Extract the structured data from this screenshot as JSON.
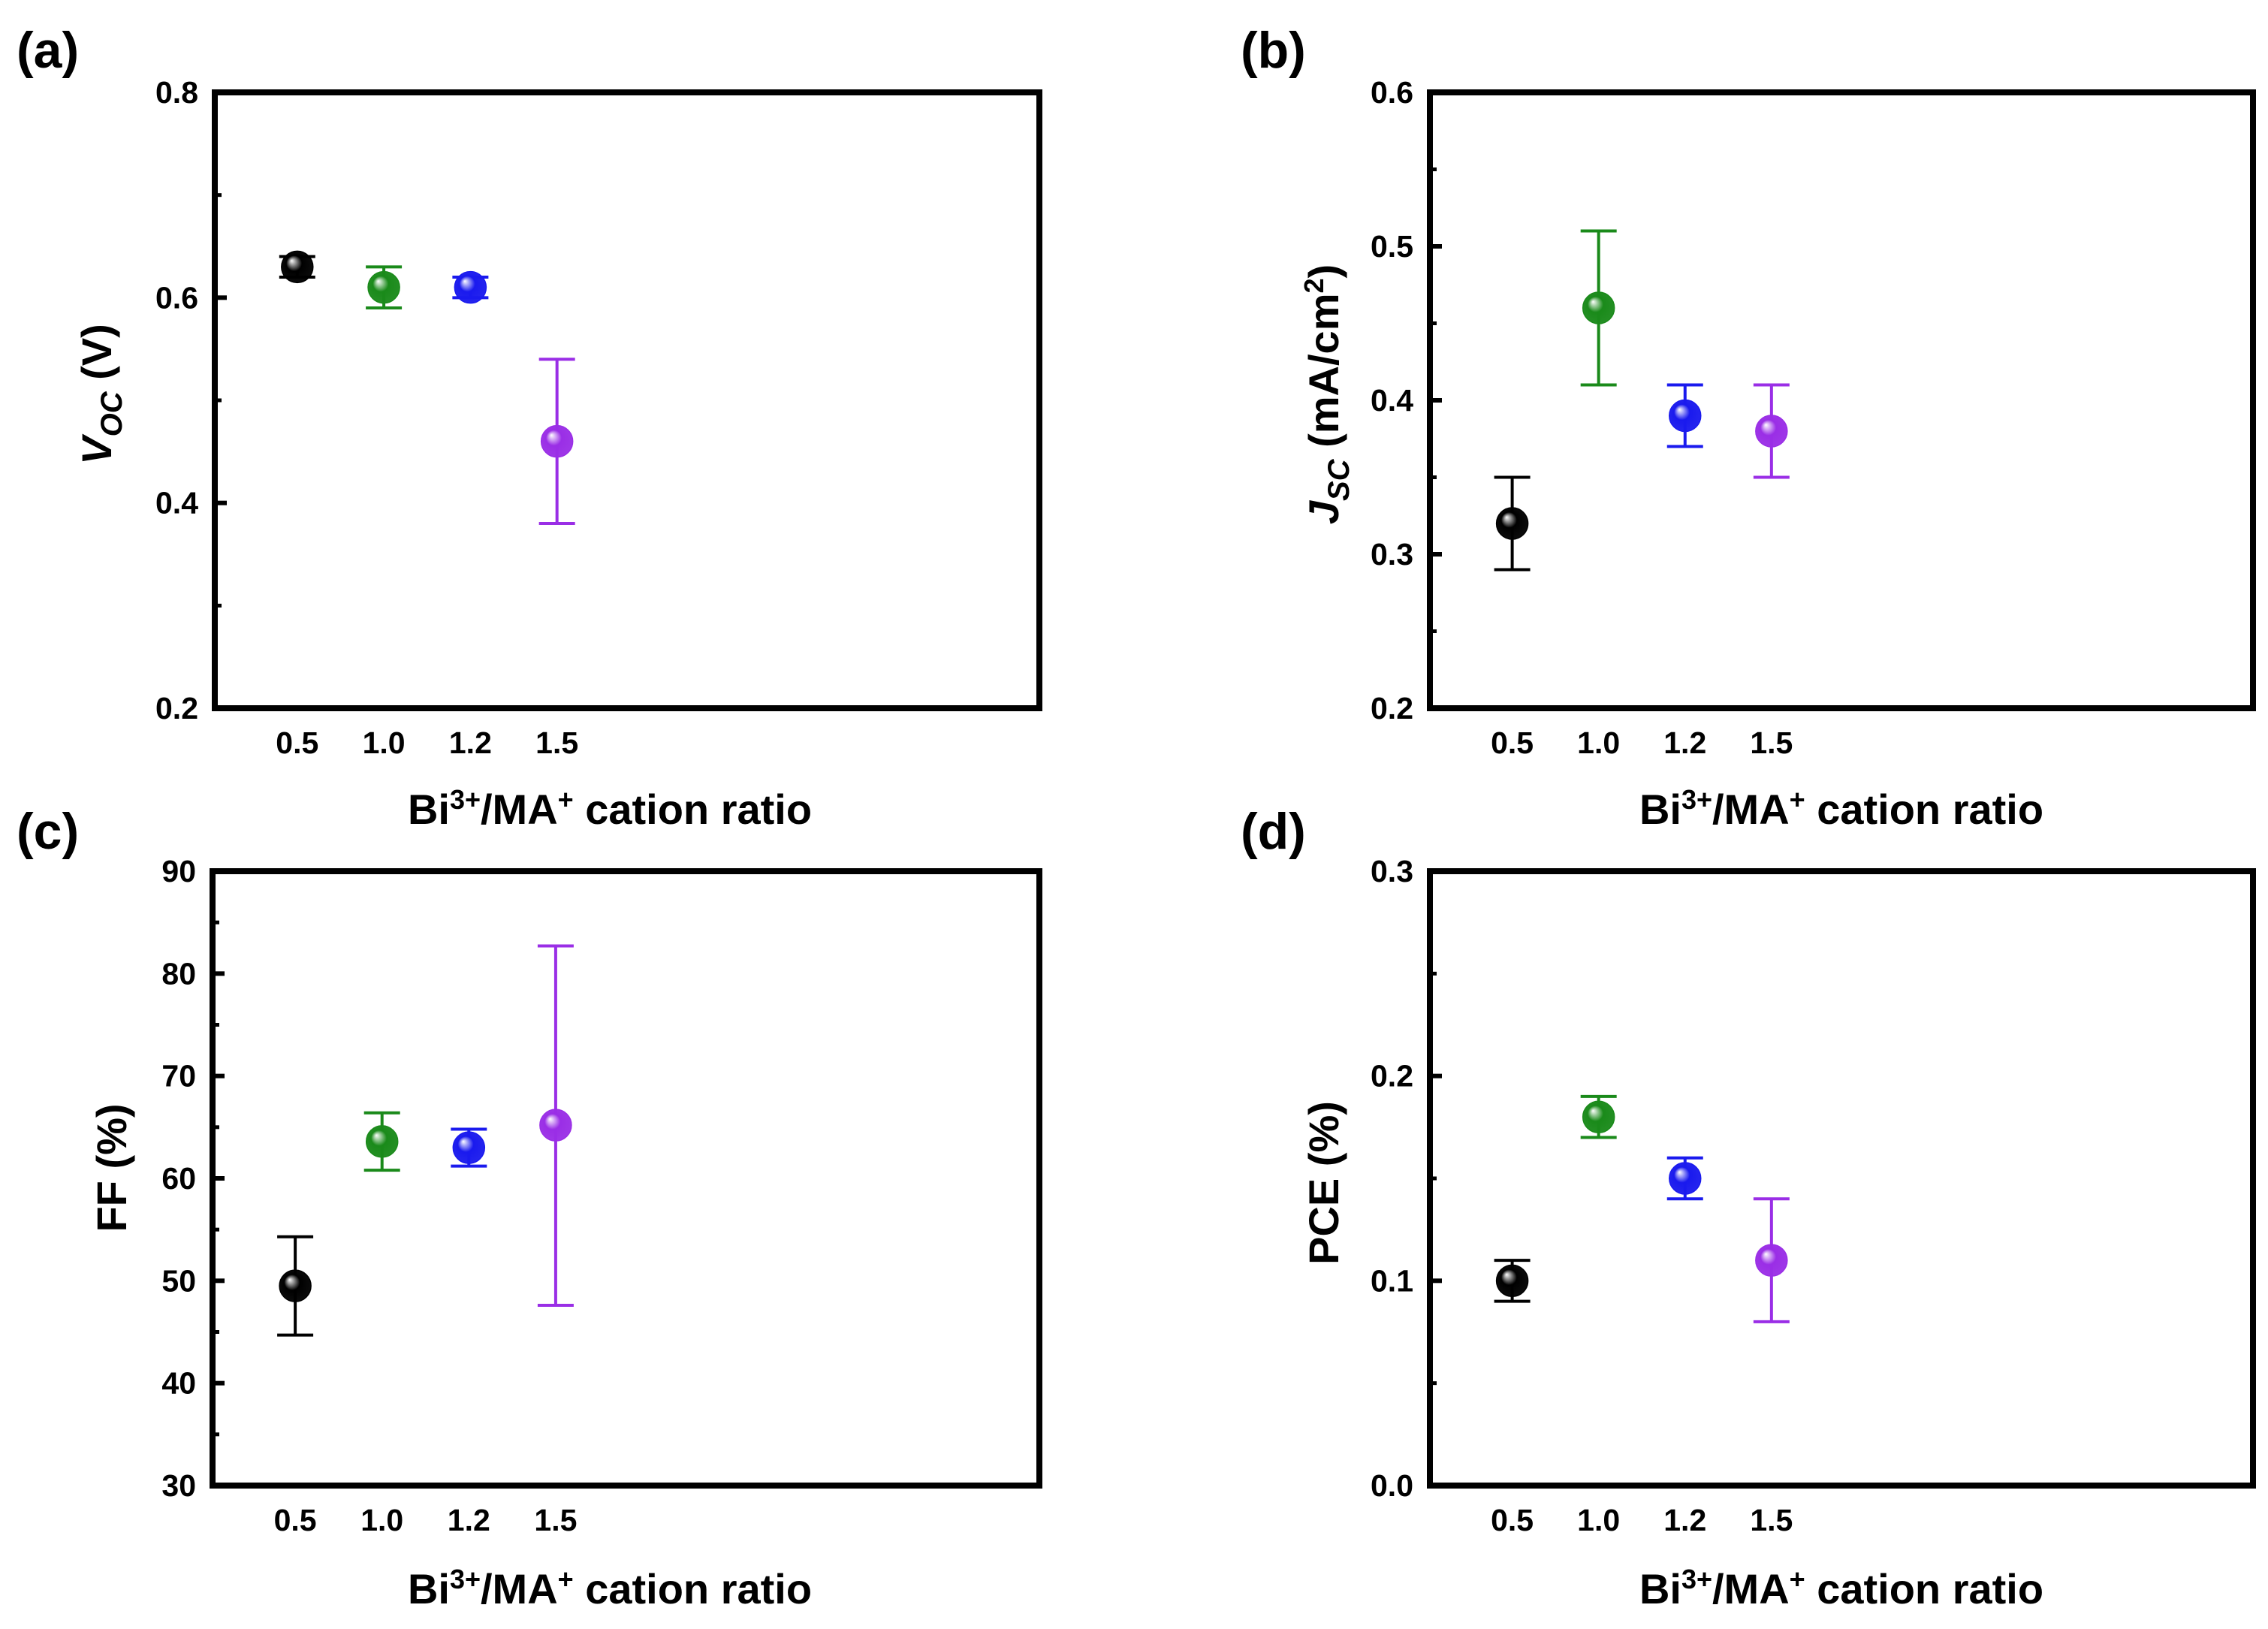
{
  "figure": {
    "x_axis_title_prefix": "Bi",
    "x_axis_title_sup1": "3+",
    "x_axis_title_mid": "/MA",
    "x_axis_title_sup2": "+",
    "x_axis_title_suffix": " cation ratio"
  },
  "chart_data": [
    {
      "panel": "(a)",
      "type": "scatter",
      "ylabel_main": "V",
      "ylabel_sub": "OC",
      "ylabel_unit": " (V)",
      "categories": [
        "0.5",
        "1.0",
        "1.2",
        "1.5"
      ],
      "ylim": [
        0.2,
        0.8
      ],
      "yticks": [
        0.2,
        0.4,
        0.6,
        0.8
      ],
      "ytick_labels": [
        "0.2",
        "0.4",
        "0.6",
        "0.8"
      ],
      "points": [
        {
          "x": "0.5",
          "y": 0.63,
          "lo": 0.62,
          "hi": 0.64,
          "color": "#000000"
        },
        {
          "x": "1.0",
          "y": 0.61,
          "lo": 0.59,
          "hi": 0.63,
          "color": "#1a8a1a"
        },
        {
          "x": "1.2",
          "y": 0.61,
          "lo": 0.6,
          "hi": 0.62,
          "color": "#1a1aee"
        },
        {
          "x": "1.5",
          "y": 0.46,
          "lo": 0.38,
          "hi": 0.54,
          "color": "#9a2ee6"
        }
      ]
    },
    {
      "panel": "(b)",
      "type": "scatter",
      "ylabel_main": "J",
      "ylabel_sub": "SC",
      "ylabel_unit": " (mA/cm",
      "ylabel_unit_sup": "2",
      "ylabel_unit_end": ")",
      "categories": [
        "0.5",
        "1.0",
        "1.2",
        "1.5"
      ],
      "ylim": [
        0.2,
        0.6
      ],
      "yticks": [
        0.2,
        0.3,
        0.4,
        0.5,
        0.6
      ],
      "ytick_labels": [
        "0.2",
        "0.3",
        "0.4",
        "0.5",
        "0.6"
      ],
      "points": [
        {
          "x": "0.5",
          "y": 0.32,
          "lo": 0.29,
          "hi": 0.35,
          "color": "#000000"
        },
        {
          "x": "1.0",
          "y": 0.46,
          "lo": 0.41,
          "hi": 0.51,
          "color": "#1a8a1a"
        },
        {
          "x": "1.2",
          "y": 0.39,
          "lo": 0.37,
          "hi": 0.41,
          "color": "#1a1aee"
        },
        {
          "x": "1.5",
          "y": 0.38,
          "lo": 0.35,
          "hi": 0.41,
          "color": "#9a2ee6"
        }
      ]
    },
    {
      "panel": "(c)",
      "type": "scatter",
      "ylabel_main": "FF (%)",
      "categories": [
        "0.5",
        "1.0",
        "1.2",
        "1.5"
      ],
      "ylim": [
        30,
        90
      ],
      "yticks": [
        30,
        40,
        50,
        60,
        70,
        80,
        90
      ],
      "ytick_labels": [
        "30",
        "40",
        "50",
        "60",
        "70",
        "80",
        "90"
      ],
      "points": [
        {
          "x": "0.5",
          "y": 49.5,
          "lo": 44.7,
          "hi": 54.3,
          "color": "#000000"
        },
        {
          "x": "1.0",
          "y": 63.6,
          "lo": 60.8,
          "hi": 66.4,
          "color": "#1a8a1a"
        },
        {
          "x": "1.2",
          "y": 63.0,
          "lo": 61.2,
          "hi": 64.8,
          "color": "#1a1aee"
        },
        {
          "x": "1.5",
          "y": 65.2,
          "lo": 47.6,
          "hi": 82.7,
          "color": "#9a2ee6"
        }
      ]
    },
    {
      "panel": "(d)",
      "type": "scatter",
      "ylabel_main": "PCE (%)",
      "categories": [
        "0.5",
        "1.0",
        "1.2",
        "1.5"
      ],
      "ylim": [
        0.0,
        0.3
      ],
      "yticks": [
        0.0,
        0.1,
        0.2,
        0.3
      ],
      "ytick_labels": [
        "0.0",
        "0.1",
        "0.2",
        "0.3"
      ],
      "points": [
        {
          "x": "0.5",
          "y": 0.1,
          "lo": 0.09,
          "hi": 0.11,
          "color": "#000000"
        },
        {
          "x": "1.0",
          "y": 0.18,
          "lo": 0.17,
          "hi": 0.19,
          "color": "#1a8a1a"
        },
        {
          "x": "1.2",
          "y": 0.15,
          "lo": 0.14,
          "hi": 0.16,
          "color": "#1a1aee"
        },
        {
          "x": "1.5",
          "y": 0.11,
          "lo": 0.08,
          "hi": 0.14,
          "color": "#9a2ee6"
        }
      ]
    }
  ]
}
